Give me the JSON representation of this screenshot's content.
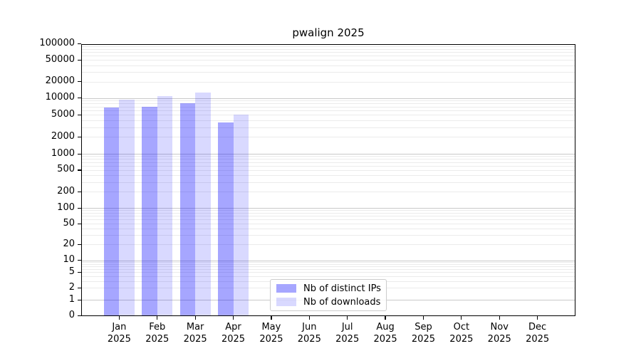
{
  "chart_data": {
    "type": "bar",
    "title": "pwalign 2025",
    "x_tick_labels": [
      {
        "month": "Jan",
        "year": "2025"
      },
      {
        "month": "Feb",
        "year": "2025"
      },
      {
        "month": "Mar",
        "year": "2025"
      },
      {
        "month": "Apr",
        "year": "2025"
      },
      {
        "month": "May",
        "year": "2025"
      },
      {
        "month": "Jun",
        "year": "2025"
      },
      {
        "month": "Jul",
        "year": "2025"
      },
      {
        "month": "Aug",
        "year": "2025"
      },
      {
        "month": "Sep",
        "year": "2025"
      },
      {
        "month": "Oct",
        "year": "2025"
      },
      {
        "month": "Nov",
        "year": "2025"
      },
      {
        "month": "Dec",
        "year": "2025"
      }
    ],
    "series": [
      {
        "name": "Nb of distinct IPs",
        "color": "rgba(0,0,255,0.35)",
        "values": [
          6800,
          7000,
          8100,
          3600,
          0,
          0,
          0,
          0,
          0,
          0,
          0,
          0
        ]
      },
      {
        "name": "Nb of downloads",
        "color": "rgba(0,0,255,0.15)",
        "values": [
          9400,
          10700,
          12600,
          5000,
          0,
          0,
          0,
          0,
          0,
          0,
          0,
          0
        ]
      }
    ],
    "y_ticks": [
      0,
      1,
      2,
      5,
      10,
      20,
      50,
      100,
      200,
      500,
      1000,
      2000,
      5000,
      10000,
      20000,
      50000,
      100000
    ],
    "y_scale": "symlog",
    "ylim": [
      0,
      100000
    ],
    "grid": {
      "major_color": "#c9c9c9",
      "minor_color": "#ebebeb"
    },
    "legend_position": "lower center"
  }
}
